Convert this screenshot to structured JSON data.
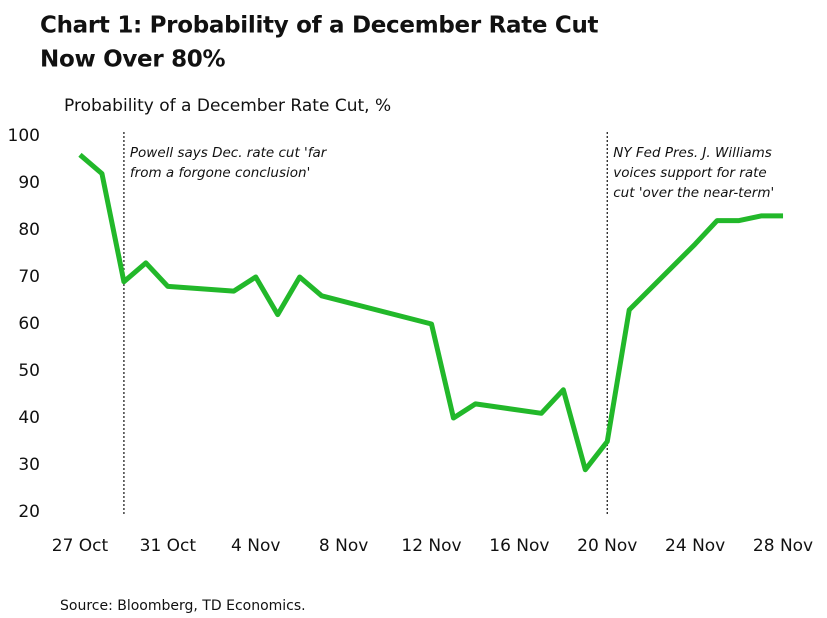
{
  "chart_data": {
    "type": "line",
    "title": [
      "Chart 1: Probability of a December Rate Cut",
      "Now Over 80%"
    ],
    "subtitle": "Probability of a December Rate Cut, %",
    "source": "Source: Bloomberg, TD Economics.",
    "x": [
      "27 Oct",
      "28 Oct",
      "29 Oct",
      "30 Oct",
      "31 Oct",
      "3 Nov",
      "4 Nov",
      "5 Nov",
      "6 Nov",
      "7 Nov",
      "12 Nov",
      "13 Nov",
      "14 Nov",
      "17 Nov",
      "18 Nov",
      "19 Nov",
      "20 Nov",
      "21 Nov",
      "24 Nov",
      "25 Nov",
      "26 Nov",
      "27 Nov",
      "28 Nov"
    ],
    "series": [
      {
        "name": "Probability of a December Rate Cut",
        "color": "#22b82a",
        "values": [
          96,
          92,
          69,
          73,
          68,
          67,
          70,
          62,
          70,
          66,
          60,
          40,
          43,
          41,
          46,
          29,
          35,
          63,
          77,
          82,
          82,
          83,
          83
        ]
      }
    ],
    "xlim": [
      "26 Oct",
      "29 Nov"
    ],
    "xticks": [
      "27 Oct",
      "31 Oct",
      "4 Nov",
      "8 Nov",
      "12 Nov",
      "16 Nov",
      "20 Nov",
      "24 Nov",
      "28 Nov"
    ],
    "ylim": [
      20,
      100
    ],
    "yticks": [
      20,
      30,
      40,
      50,
      60,
      70,
      80,
      90,
      100
    ],
    "grid": false,
    "annotations": [
      {
        "x": "29 Oct",
        "lines": [
          "Powell says Dec. rate cut 'far",
          "from a forgone conclusion'"
        ]
      },
      {
        "x": "20 Nov",
        "lines": [
          "NY Fed Pres. J. Williams",
          "voices support for rate",
          "cut 'over the near-term'"
        ]
      }
    ]
  }
}
